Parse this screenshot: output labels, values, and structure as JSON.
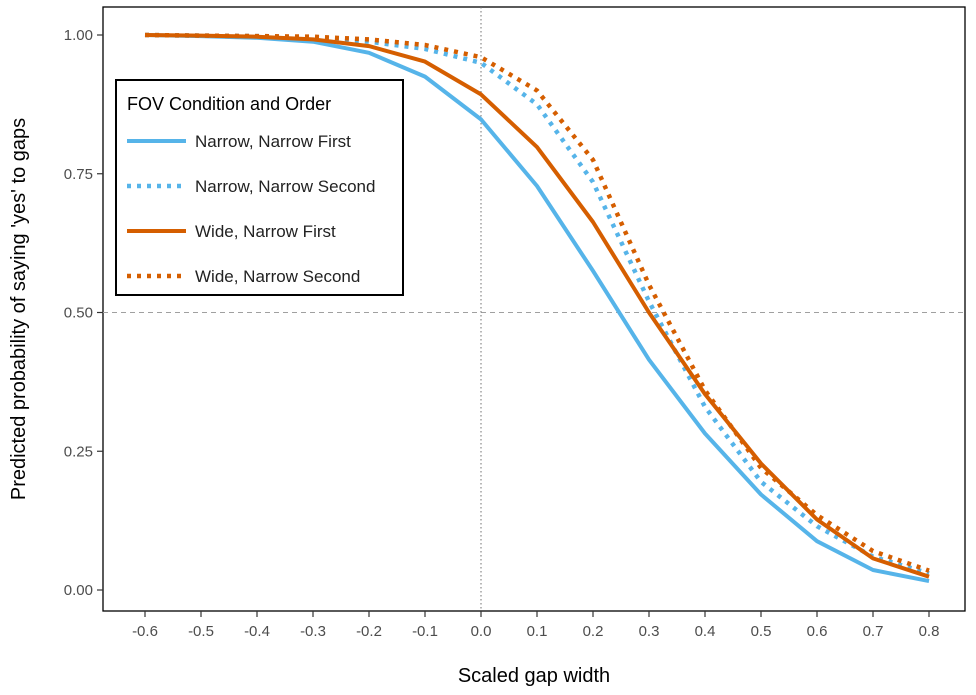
{
  "chart_data": {
    "type": "line",
    "title": "",
    "xlabel": "Scaled gap width",
    "ylabel": "Predicted probability of saying 'yes' to gaps",
    "xlim": [
      -0.6,
      0.8
    ],
    "ylim": [
      0,
      1
    ],
    "x_ticks": [
      "-0.6",
      "-0.5",
      "-0.4",
      "-0.3",
      "-0.2",
      "-0.1",
      "0.0",
      "0.1",
      "0.2",
      "0.3",
      "0.4",
      "0.5",
      "0.6",
      "0.7",
      "0.8"
    ],
    "y_ticks": [
      "0.00",
      "0.25",
      "0.50",
      "0.75",
      "1.00"
    ],
    "grid": false,
    "reference_lines": {
      "x": 0.0,
      "y": 0.5
    },
    "legend": {
      "title": "FOV Condition and Order",
      "placement": "top-left"
    },
    "x": [
      -0.6,
      -0.5,
      -0.4,
      -0.3,
      -0.2,
      -0.1,
      0.0,
      0.1,
      0.2,
      0.3,
      0.4,
      0.5,
      0.6,
      0.7,
      0.8
    ],
    "series": [
      {
        "name": "Narrow, Narrow First",
        "color": "#56B4E9",
        "style": "solid",
        "values": [
          1.0,
          0.998,
          0.995,
          0.988,
          0.968,
          0.925,
          0.848,
          0.728,
          0.575,
          0.415,
          0.282,
          0.172,
          0.088,
          0.036,
          0.016
        ]
      },
      {
        "name": "Narrow, Narrow Second",
        "color": "#56B4E9",
        "style": "dotted",
        "values": [
          1.0,
          0.999,
          0.998,
          0.995,
          0.988,
          0.975,
          0.95,
          0.875,
          0.735,
          0.52,
          0.33,
          0.195,
          0.115,
          0.06,
          0.03
        ]
      },
      {
        "name": "Wide, Narrow First",
        "color": "#D55E00",
        "style": "solid",
        "values": [
          1.0,
          0.999,
          0.997,
          0.992,
          0.98,
          0.952,
          0.893,
          0.798,
          0.663,
          0.5,
          0.353,
          0.228,
          0.127,
          0.057,
          0.024
        ]
      },
      {
        "name": "Wide, Narrow Second",
        "color": "#D55E00",
        "style": "dotted",
        "values": [
          1.0,
          0.999,
          0.998,
          0.997,
          0.992,
          0.982,
          0.96,
          0.9,
          0.775,
          0.55,
          0.36,
          0.22,
          0.135,
          0.07,
          0.035
        ]
      }
    ]
  }
}
